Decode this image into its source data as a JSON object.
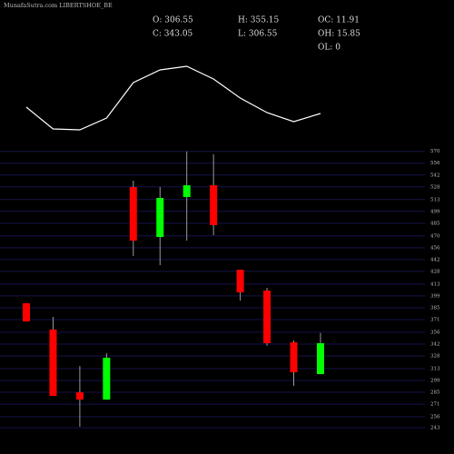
{
  "chart_data": [
    {
      "type": "candlestick",
      "title": "MunafaSutra.com LIBERTSHOE_BE",
      "info": [
        "O: 306.55",
        "H: 355.15",
        "OC: 11.91",
        "C: 343.05",
        "L: 306.55",
        "OH: 15.85",
        "OL: 0"
      ],
      "categories": [
        null,
        null,
        null,
        null,
        null,
        null,
        null,
        null,
        null,
        null,
        null,
        null
      ],
      "open": [
        390.3,
        359.2,
        285.0,
        276.4,
        527.8,
        468.7,
        516.0,
        529.9,
        430.0,
        405.3,
        344.1,
        306.55
      ],
      "high": [
        390.3,
        374.2,
        316.2,
        331.2,
        535.3,
        527.8,
        570.0,
        566.5,
        430.0,
        408.6,
        346.2,
        355.15
      ],
      "low": [
        368.8,
        280.7,
        244.2,
        276.4,
        446.2,
        435.4,
        464.4,
        470.9,
        393.5,
        340.0,
        292.6,
        306.55
      ],
      "close": [
        368.8,
        280.7,
        276.4,
        325.9,
        464.4,
        514.9,
        529.9,
        482.7,
        403.2,
        343.1,
        308.7,
        343.05
      ],
      "up_color": "#00ff00",
      "down_color": "#ff0000",
      "ylim": [
        212,
        577.2
      ],
      "yticks": [
        570,
        556,
        542,
        528,
        513,
        499,
        485,
        470,
        456,
        442,
        428,
        413,
        399,
        385,
        371,
        356,
        342,
        328,
        313,
        299,
        285,
        271,
        256,
        243
      ],
      "grid": true
    },
    {
      "type": "line",
      "categories": [
        null,
        null,
        null,
        null,
        null,
        null,
        null,
        null,
        null,
        null,
        null,
        null
      ],
      "values": [
        42,
        18,
        17,
        30,
        69,
        83,
        87,
        73,
        52,
        36,
        26,
        35
      ],
      "color": "#ffffff",
      "ylim": [
        0,
        100
      ]
    }
  ]
}
